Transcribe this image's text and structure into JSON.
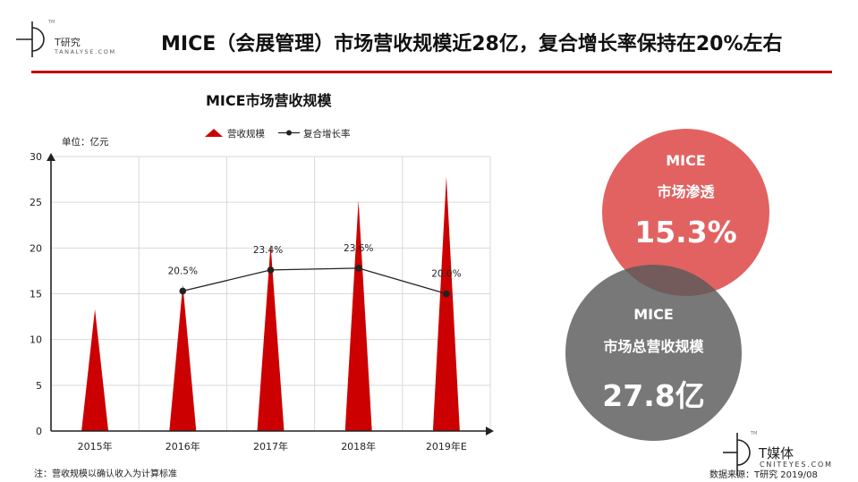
{
  "brand_top": {
    "name": "T研究",
    "name_en": "TANALYSE.COM",
    "tm": "TM"
  },
  "headline": "MICE（会展管理）市场营收规模近28亿，复合增长率保持在20%左右",
  "colors": {
    "accent": "#c00000",
    "bar": "#cc0000",
    "line": "#222222",
    "bubble_red": "#dc4444",
    "bubble_gray": "#5a5a5a"
  },
  "chart_data": {
    "type": "bar",
    "title": "MICE市场营收规模",
    "unit_label": "单位：亿元",
    "categories": [
      "2015年",
      "2016年",
      "2017年",
      "2018年",
      "2019年E"
    ],
    "series": [
      {
        "name": "营收规模",
        "type": "bar",
        "values": [
          13.3,
          16.0,
          20.4,
          25.2,
          27.8
        ]
      },
      {
        "name": "复合增长率",
        "type": "line",
        "values": [
          null,
          20.5,
          23.4,
          23.6,
          20.0
        ],
        "labels": [
          "",
          "20.5%",
          "23.4%",
          "23.6%",
          "20.0%"
        ],
        "plotted_at": [
          null,
          15.3,
          17.6,
          17.8,
          15.0
        ]
      }
    ],
    "yticks": [
      0,
      5,
      10,
      15,
      20,
      25,
      30
    ],
    "ylim": [
      0,
      30
    ],
    "grid": true,
    "legend_position": "top"
  },
  "stats": {
    "penetration": {
      "line1": "MICE",
      "line2": "市场渗透",
      "value": "15.3%"
    },
    "scale": {
      "line1": "MICE",
      "line2": "市场总营收规模",
      "value": "27.8亿"
    }
  },
  "brand_bottom": {
    "name": "T媒体",
    "name_en": "CNITEYES.COM",
    "tm": "TM"
  },
  "note": "注：营收规模以确认收入为计算标准",
  "source": "数据来源：T研究 2019/08"
}
